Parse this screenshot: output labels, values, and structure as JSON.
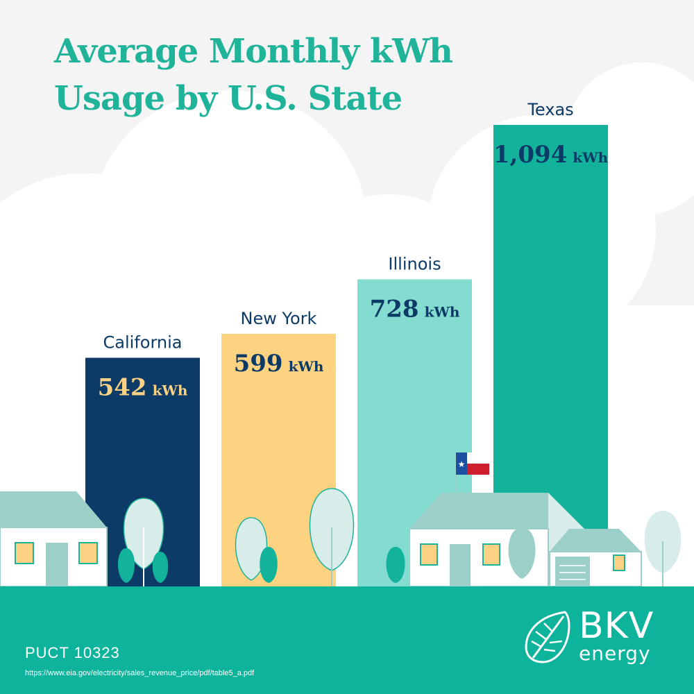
{
  "title_lines": [
    "Average Monthly kWh",
    "Usage by U.S. State"
  ],
  "footer": {
    "code": "PUCT 10323",
    "source_url": "https://www.eia.gov/electricity/sales_revenue_price/pdf/table5_a.pdf"
  },
  "brand": {
    "name": "BKV",
    "subname": "energy",
    "logo_icon": "leaf-icon"
  },
  "colors": {
    "title": "#1fb39a",
    "ground": "#0eb39c",
    "cloud": "#ffffff",
    "state_label": "#0c3a66"
  },
  "chart_data": {
    "type": "bar",
    "title": "Average Monthly kWh Usage by U.S. State",
    "xlabel": "",
    "ylabel": "",
    "unit": "kWh",
    "categories": [
      "California",
      "New York",
      "Illinois",
      "Texas"
    ],
    "values": [
      542,
      599,
      728,
      1094
    ],
    "value_labels": [
      "542",
      "599",
      "728",
      "1,094"
    ],
    "bar_colors": [
      "#0b3b66",
      "#fdd281",
      "#84dbd0",
      "#12b29b"
    ],
    "value_label_colors": [
      "#fbd284",
      "#0c3a66",
      "#0c3a66",
      "#0c3a66"
    ],
    "ylim": [
      0,
      1200
    ],
    "grid": false
  }
}
